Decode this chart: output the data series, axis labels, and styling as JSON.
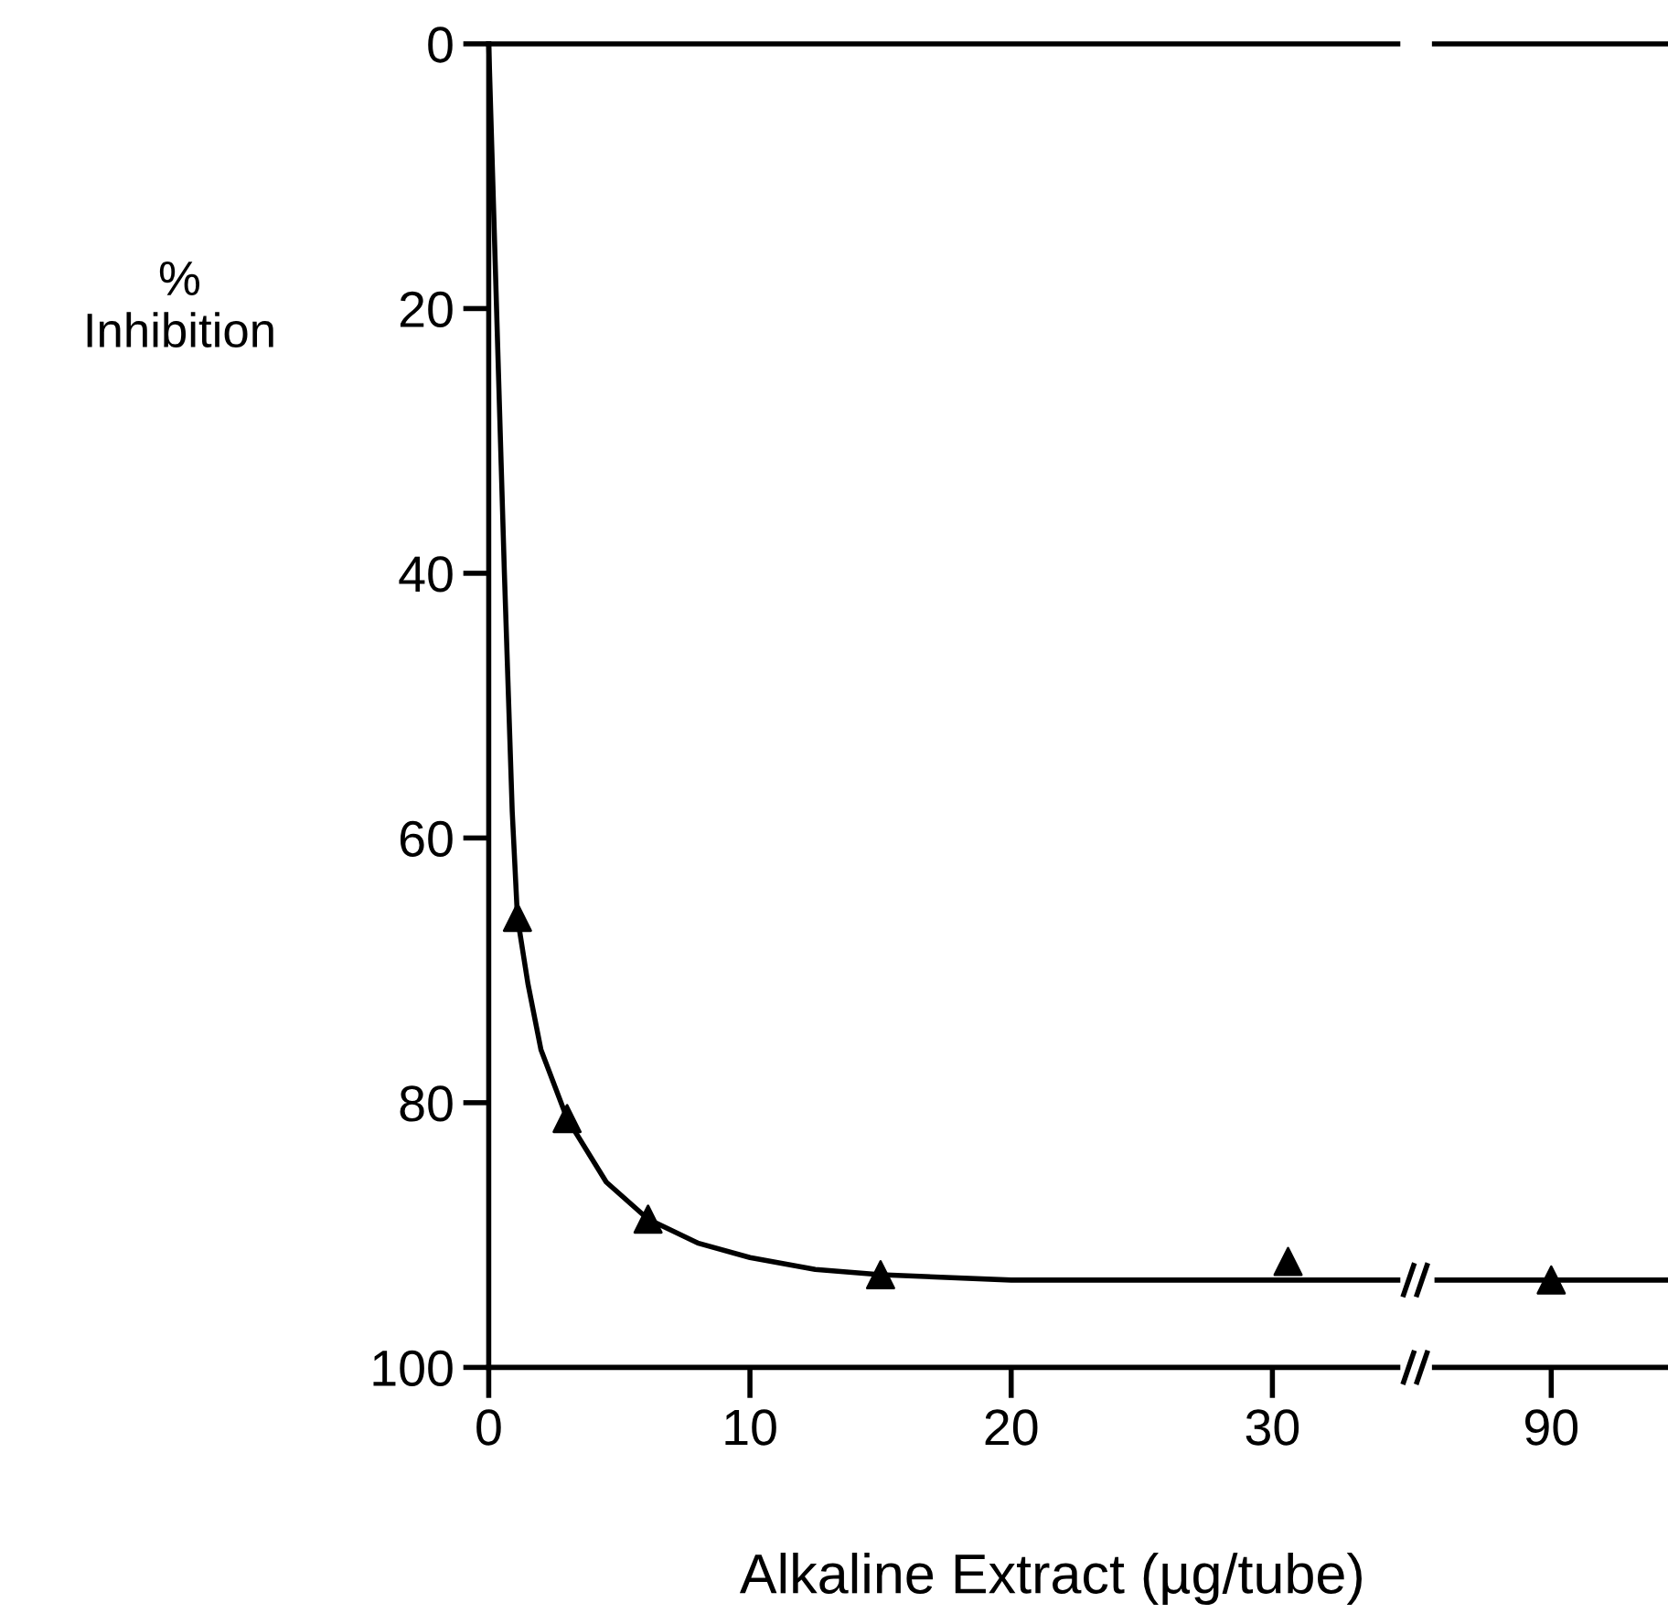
{
  "chart_data": [
    {
      "type": "line",
      "ylabel": "%\nInhibition",
      "xlabel": "Alkaline Extract (µg/tube)",
      "xlim": [
        0,
        34.8
      ],
      "xticks": [
        0,
        10,
        20,
        30
      ],
      "ylim": [
        100,
        0
      ],
      "yticks": [
        0,
        20,
        40,
        60,
        80,
        100
      ],
      "grid": false,
      "legend": false,
      "series": [
        {
          "color": "#000000",
          "marker": "none",
          "line_style": "solid",
          "x": [
            0,
            0.3,
            0.6,
            0.9,
            1.1,
            1.5,
            2,
            3,
            4.5,
            6.1,
            8,
            10,
            12.5,
            15,
            20,
            34.8
          ],
          "values": [
            0,
            20,
            40,
            58,
            66,
            71,
            76,
            81.2,
            86,
            88.8,
            90.6,
            91.7,
            92.6,
            93,
            93.4,
            93.4
          ]
        },
        {
          "type": "scatter",
          "color": "#000000",
          "marker": "triangle",
          "x": [
            1.1,
            3,
            6.1,
            15,
            30.6
          ],
          "values": [
            66,
            81.2,
            88.8,
            93,
            92
          ]
        }
      ]
    },
    {
      "type": "scatter",
      "categories": [
        "90"
      ],
      "ylim": [
        100,
        0
      ],
      "tick_labels": "x",
      "grid": false,
      "legend": false,
      "ref_lines": [
        {
          "axis": "y",
          "value": 93.4,
          "color": "#000000",
          "line_style": "solid"
        }
      ],
      "series": [
        {
          "color": "#000000",
          "marker": "triangle",
          "values": [
            93.4
          ]
        }
      ]
    }
  ]
}
